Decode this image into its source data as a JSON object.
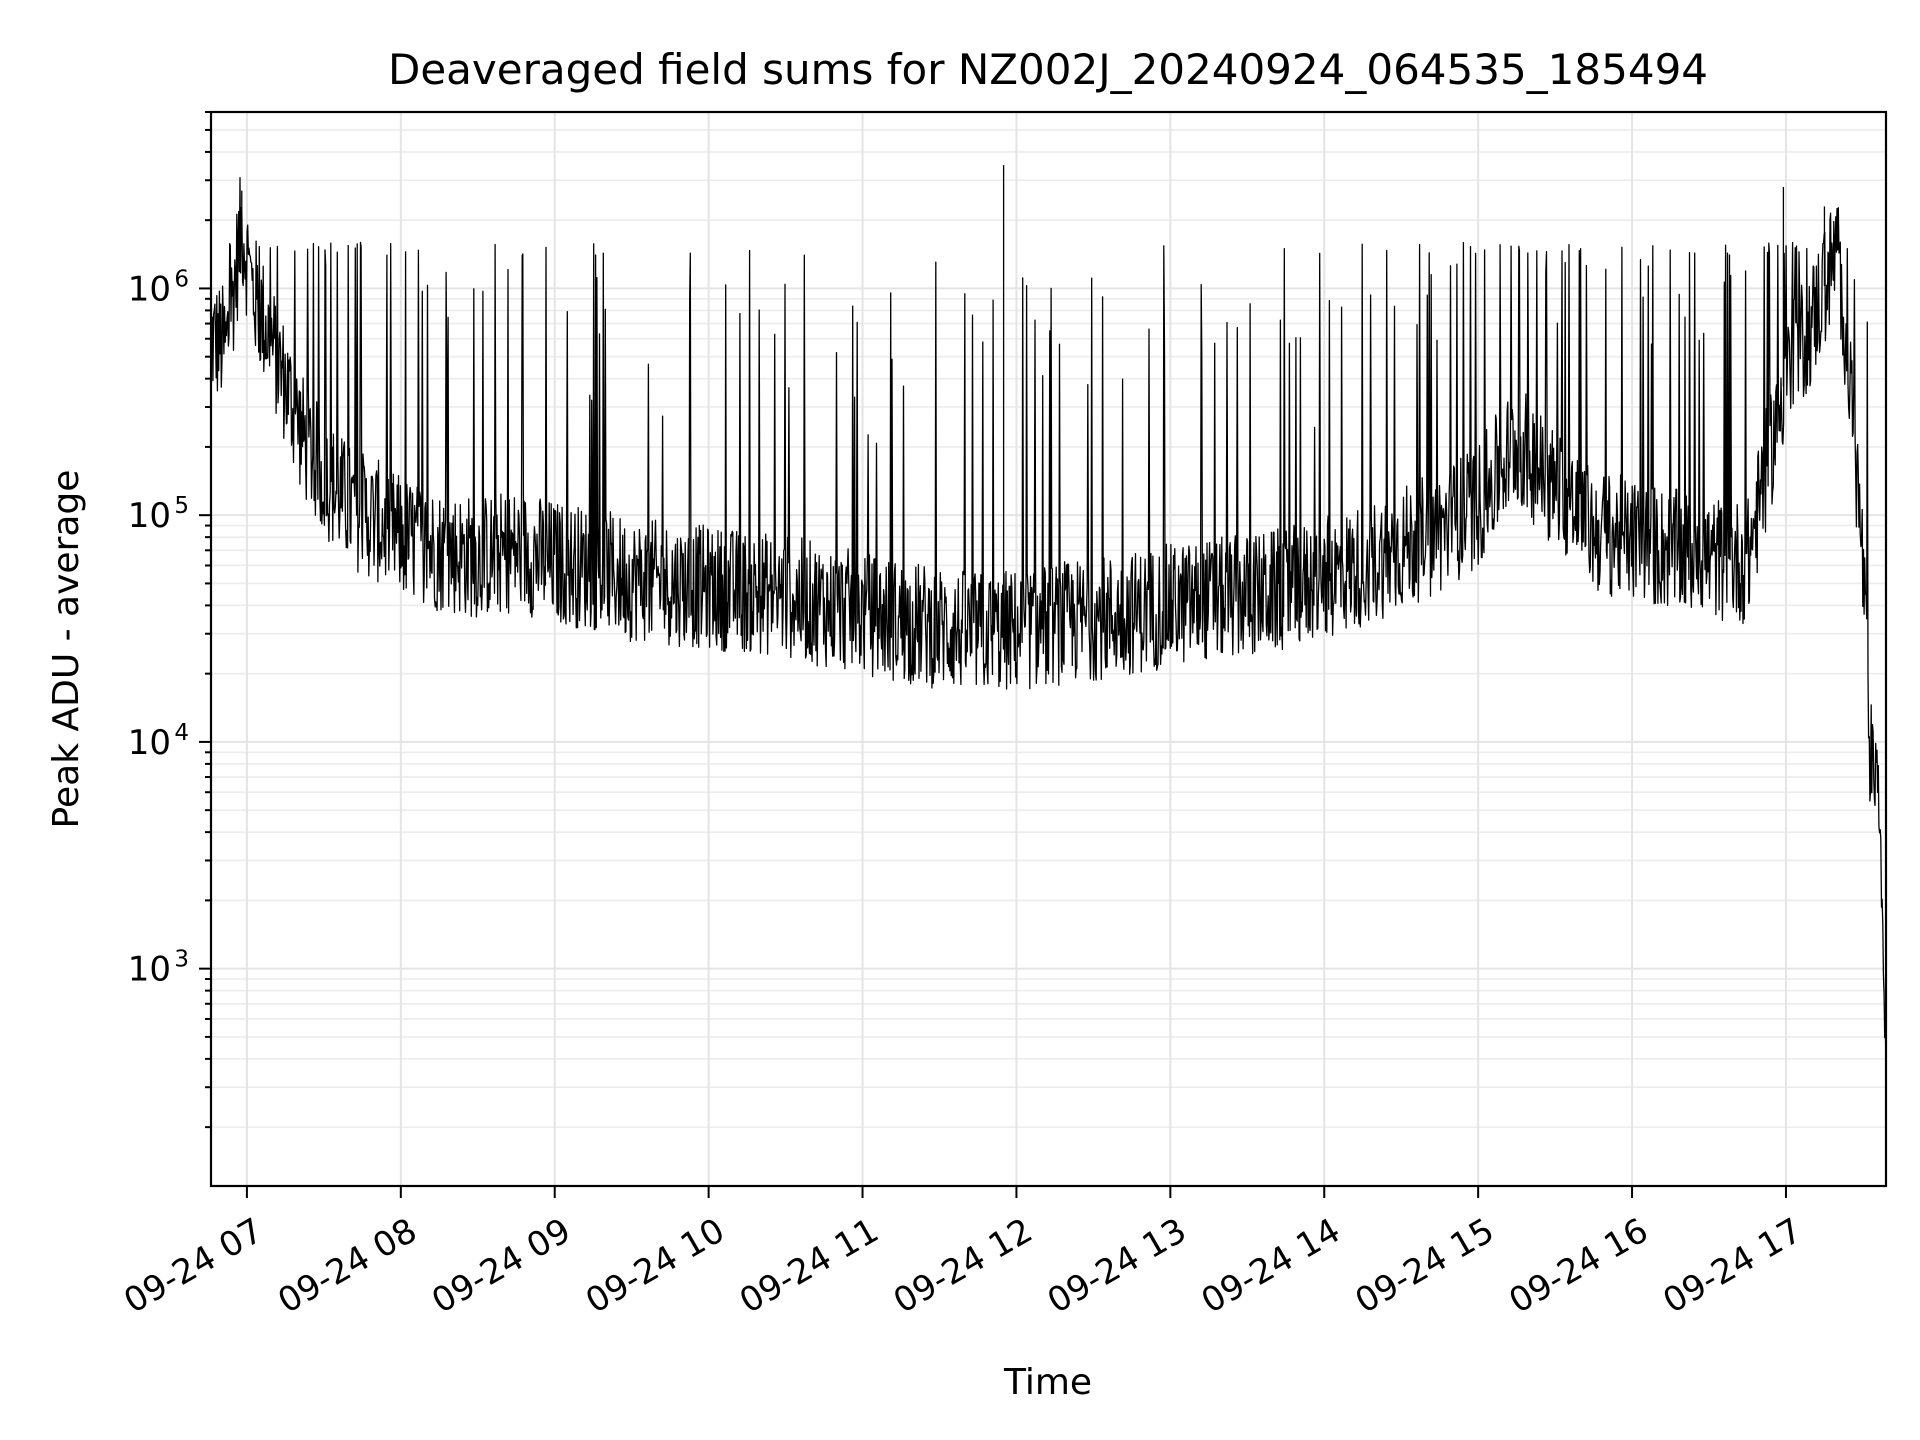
{
  "chart_data": {
    "type": "line",
    "title": "Deaveraged field sums for NZ002J_20240924_064535_185494",
    "xlabel": "Time",
    "ylabel": "Peak ADU - average",
    "yscale": "log",
    "ylim": [
      110,
      6000000
    ],
    "xlim": [
      "2024-09-24 06:46",
      "2024-09-24 17:39"
    ],
    "grid": true,
    "legend": "none",
    "line_color": "#000000",
    "x_ticks": [
      "09-24 07",
      "09-24 08",
      "09-24 09",
      "09-24 10",
      "09-24 11",
      "09-24 12",
      "09-24 13",
      "09-24 14",
      "09-24 15",
      "09-24 16",
      "09-24 17"
    ],
    "y_ticks": [
      {
        "value": 1000,
        "base": "10",
        "exp": "3"
      },
      {
        "value": 10000,
        "base": "10",
        "exp": "4"
      },
      {
        "value": 100000,
        "base": "10",
        "exp": "5"
      },
      {
        "value": 1000000,
        "base": "10",
        "exp": "6"
      }
    ],
    "series": [
      {
        "x": [
          "2024-09-24 06:46",
          "2024-09-24 06:52",
          "2024-09-24 06:58",
          "2024-09-24 07:02",
          "2024-09-24 07:08",
          "2024-09-24 07:15",
          "2024-09-24 07:22",
          "2024-09-24 07:30",
          "2024-09-24 07:40",
          "2024-09-24 07:50",
          "2024-09-24 08:00",
          "2024-09-24 08:15",
          "2024-09-24 08:30",
          "2024-09-24 08:45",
          "2024-09-24 09:00",
          "2024-09-24 09:15",
          "2024-09-24 09:30",
          "2024-09-24 09:45",
          "2024-09-24 10:00",
          "2024-09-24 10:15",
          "2024-09-24 10:30",
          "2024-09-24 10:45",
          "2024-09-24 11:00",
          "2024-09-24 11:15",
          "2024-09-24 11:30",
          "2024-09-24 11:45",
          "2024-09-24 12:00",
          "2024-09-24 12:15",
          "2024-09-24 12:30",
          "2024-09-24 12:45",
          "2024-09-24 13:00",
          "2024-09-24 13:15",
          "2024-09-24 13:30",
          "2024-09-24 13:45",
          "2024-09-24 14:00",
          "2024-09-24 14:15",
          "2024-09-24 14:30",
          "2024-09-24 14:45",
          "2024-09-24 15:00",
          "2024-09-24 15:15",
          "2024-09-24 15:30",
          "2024-09-24 15:45",
          "2024-09-24 16:00",
          "2024-09-24 16:15",
          "2024-09-24 16:30",
          "2024-09-24 16:45",
          "2024-09-24 17:00",
          "2024-09-24 17:10",
          "2024-09-24 17:20",
          "2024-09-24 17:25",
          "2024-09-24 17:30",
          "2024-09-24 17:33",
          "2024-09-24 17:36",
          "2024-09-24 17:39"
        ],
        "y": [
          600000,
          550000,
          1900000,
          1000000,
          650000,
          380000,
          220000,
          150000,
          110000,
          95000,
          80000,
          70000,
          65000,
          70000,
          62000,
          58000,
          52000,
          50000,
          48000,
          46000,
          44000,
          40000,
          37000,
          34000,
          32000,
          30000,
          31000,
          33000,
          35000,
          37000,
          40000,
          42000,
          44000,
          47000,
          52000,
          60000,
          72000,
          85000,
          110000,
          210000,
          130000,
          85000,
          78000,
          70000,
          65000,
          62000,
          420000,
          700000,
          1500000,
          400000,
          60000,
          8000,
          7000,
          400
        ]
      }
    ]
  }
}
